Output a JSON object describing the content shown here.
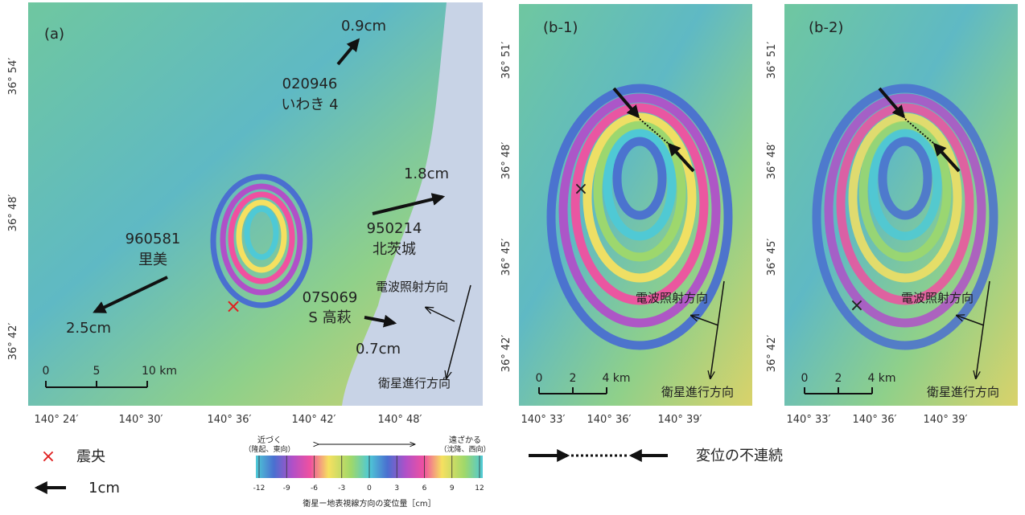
{
  "panel_a": {
    "label": "(a)",
    "stations": [
      {
        "id": "020946",
        "name": "いわき 4",
        "displacement": "0.9cm"
      },
      {
        "id": "950214",
        "name": "北茨城",
        "displacement": "1.8cm"
      },
      {
        "id": "960581",
        "name": "里美",
        "displacement": "2.5cm"
      },
      {
        "id": "07S069",
        "name": "S 高萩",
        "displacement": "0.7cm"
      }
    ],
    "radar_direction": "電波照射方向",
    "satellite_direction": "衛星進行方向",
    "scale": [
      "0",
      "5",
      "10 km"
    ],
    "lat_labels": [
      "36° 54′",
      "36° 48′",
      "36° 42′"
    ],
    "lon_labels": [
      "140° 24′",
      "140° 30′",
      "140° 36′",
      "140° 42′",
      "140° 48′"
    ]
  },
  "panel_b1": {
    "label": "(b-1)",
    "radar_direction": "電波照射方向",
    "satellite_direction": "衛星進行方向",
    "scale": [
      "0",
      "2",
      "4 km"
    ],
    "lat_labels": [
      "36° 51′",
      "36° 48′",
      "36° 45′",
      "36° 42′"
    ],
    "lon_labels": [
      "140° 33′",
      "140° 36′",
      "140° 39′"
    ]
  },
  "panel_b2": {
    "label": "(b-2)",
    "radar_direction": "電波照射方向",
    "satellite_direction": "衛星進行方向",
    "scale": [
      "0",
      "2",
      "4 km"
    ],
    "lat_labels": [
      "36° 51′",
      "36° 48′",
      "36° 45′",
      "36° 42′"
    ],
    "lon_labels": [
      "140° 33′",
      "140° 36′",
      "140° 39′"
    ]
  },
  "legend": {
    "epicenter_symbol": "×",
    "epicenter": "震央",
    "arrow_scale": "1cm",
    "discontinuity": "変位の不連続"
  },
  "colorbar": {
    "approach": "近づく",
    "approach_note": "（隆起、東向）",
    "recede": "遠ざかる",
    "recede_note": "（沈降、西向）",
    "ticks": [
      -12,
      -9,
      -6,
      -3,
      0,
      3,
      6,
      9,
      12
    ],
    "title": "衛星ー地表視線方向の変位量［cm］"
  }
}
